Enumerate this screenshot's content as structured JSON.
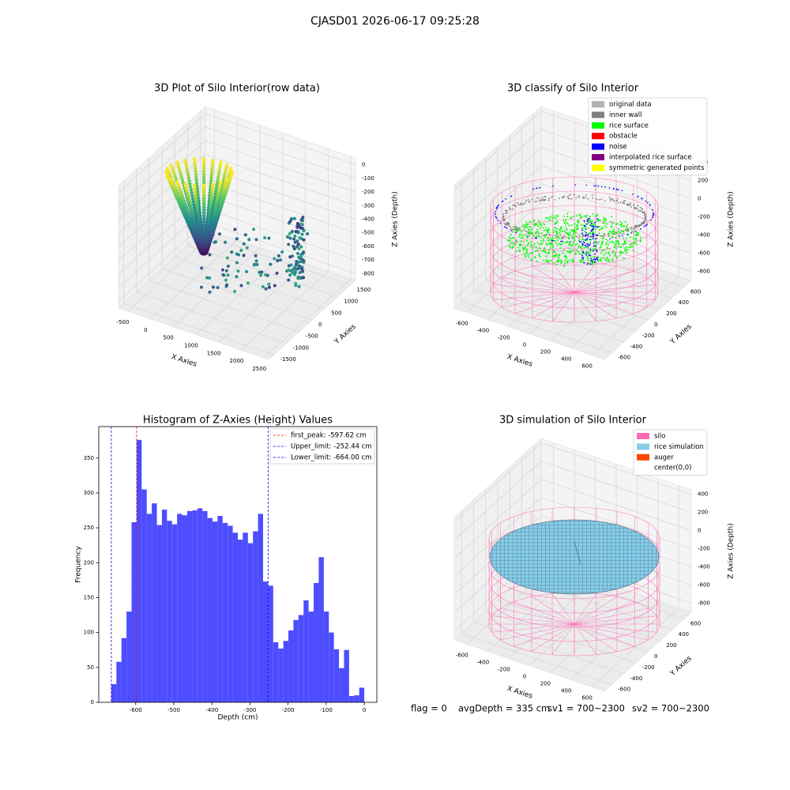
{
  "suptitle": "CJASD01 2026-06-17 09:25:28",
  "chart_data": [
    {
      "type": "scatter3d",
      "title": "3D Plot of Silo Interior(row data)",
      "xlabel": "X Axies",
      "ylabel": "Y Axies",
      "zlabel": "Z Axies (Depth)",
      "xlim": [
        -700,
        2600
      ],
      "xticks": [
        -500,
        0,
        500,
        1000,
        1500,
        2000,
        2500
      ],
      "ylim": [
        -1700,
        1700
      ],
      "yticks": [
        -1500,
        -1000,
        -500,
        0,
        500,
        1000,
        1500
      ],
      "zlim": [
        -850,
        50
      ],
      "zticks": [
        0,
        -100,
        -200,
        -300,
        -400,
        -500,
        -600,
        -700,
        -800
      ]
    },
    {
      "type": "classify3d",
      "title": "3D classify of Silo Interior",
      "xlabel": "X Axies",
      "ylabel": "Y Axies",
      "zlabel": "Z Axies (Depth)",
      "xlim": [
        -720,
        720
      ],
      "xticks": [
        -600,
        -400,
        -200,
        0,
        200,
        400,
        600
      ],
      "ylim": [
        -720,
        720
      ],
      "yticks": [
        -600,
        -400,
        -200,
        0,
        200,
        400,
        600
      ],
      "zlim": [
        -900,
        450
      ],
      "zticks": [
        400,
        200,
        0,
        -200,
        -400,
        -600,
        -800
      ],
      "legend": [
        {
          "name": "original data",
          "color": "#b3b3b3"
        },
        {
          "name": "inner wall",
          "color": "#808080"
        },
        {
          "name": "rice surface",
          "color": "#00ff00"
        },
        {
          "name": "obstacle",
          "color": "#ff0000"
        },
        {
          "name": "noise",
          "color": "#0000ff"
        },
        {
          "name": "interpolated rice surface",
          "color": "#800080"
        },
        {
          "name": "symmetric generated points",
          "color": "#ffff00"
        }
      ]
    },
    {
      "type": "histogram",
      "title": "Histogram of Z-Axies (Height) Values",
      "xlabel": "Depth (cm)",
      "ylabel": "Frequency",
      "color": "#4d4dff",
      "bins": [
        -664,
        -650.72,
        -637.44,
        -624.16,
        -610.88,
        -597.6,
        -584.32,
        -571.04,
        -557.76,
        -544.48,
        -531.2,
        -517.92,
        -504.64,
        -491.36,
        -478.08,
        -464.8,
        -451.52,
        -438.24,
        -424.96,
        -411.68,
        -398.4,
        -385.12,
        -371.84,
        -358.56,
        -345.28,
        -332,
        -318.72,
        -305.44,
        -292.16,
        -278.88,
        -265.6,
        -252.32,
        -239.04,
        -225.76,
        -212.48,
        -199.2,
        -185.92,
        -172.64,
        -159.36,
        -146.08,
        -132.8,
        -119.52,
        -106.24,
        -92.96,
        -79.68,
        -66.4,
        -53.12,
        -39.84,
        -26.56,
        -13.28,
        0
      ],
      "counts": [
        26,
        58,
        92,
        130,
        258,
        376,
        305,
        270,
        285,
        254,
        276,
        260,
        255,
        270,
        268,
        274,
        275,
        278,
        274,
        264,
        259,
        267,
        257,
        253,
        243,
        233,
        243,
        228,
        245,
        270,
        173,
        167,
        86,
        77,
        88,
        103,
        118,
        125,
        146,
        130,
        171,
        208,
        130,
        100,
        76,
        49,
        75,
        9,
        10,
        21
      ],
      "xlim": [
        -697,
        33
      ],
      "xticks": [
        -600,
        -500,
        -400,
        -300,
        -200,
        -100,
        0
      ],
      "ylim": [
        0,
        395
      ],
      "yticks": [
        0,
        50,
        100,
        150,
        200,
        250,
        300,
        350
      ],
      "vlines": [
        {
          "label": "first_peak: -597.62 cm",
          "value": -597.62,
          "color": "#ff0000"
        },
        {
          "label": "Upper_limit: -252.44 cm",
          "value": -252.44,
          "color": "#0000ff"
        },
        {
          "label": "Lower_limit: -664.00 cm",
          "value": -664.0,
          "color": "#0000ff"
        }
      ]
    },
    {
      "type": "surface3d",
      "title": "3D simulation of Silo Interior",
      "xlabel": "X Axies",
      "ylabel": "Y Axies",
      "zlabel": "Z Axies (Depth)",
      "xlim": [
        -720,
        720
      ],
      "xticks": [
        -600,
        -400,
        -200,
        0,
        200,
        400,
        600
      ],
      "ylim": [
        -720,
        720
      ],
      "yticks": [
        -600,
        -400,
        -200,
        0,
        200,
        400,
        600
      ],
      "zlim": [
        -900,
        450
      ],
      "zticks": [
        400,
        200,
        0,
        -200,
        -400,
        -600,
        -800
      ],
      "legend": [
        {
          "name": "silo",
          "color": "#ff69b4"
        },
        {
          "name": "rice simulation",
          "color": "#87ceeb"
        },
        {
          "name": "auger",
          "color": "#ff4500"
        },
        {
          "name": "center(0,0)",
          "color": "#ffffff"
        }
      ]
    }
  ],
  "status": [
    "flag = 0",
    "avgDepth = 335 cm",
    "sv1 = 700~2300",
    "sv2 = 700~2300"
  ]
}
